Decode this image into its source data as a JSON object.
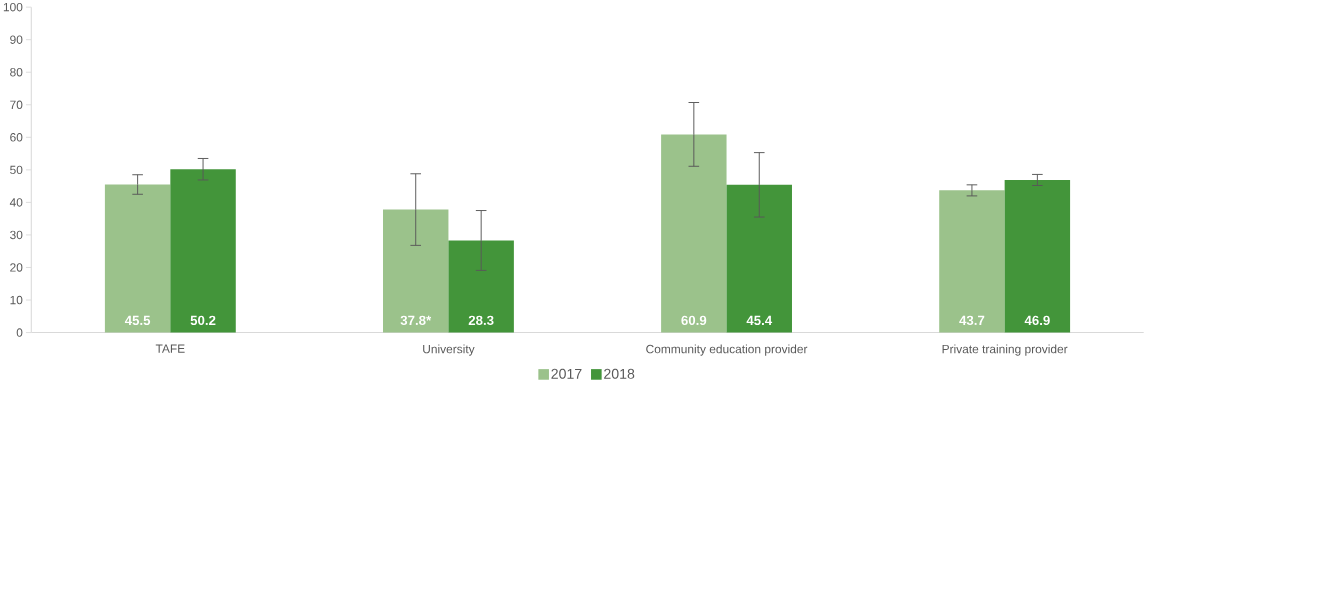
{
  "chart_data": {
    "type": "bar",
    "categories": [
      "TAFE",
      "University",
      "Community education provider",
      "Private training provider"
    ],
    "series": [
      {
        "name": "2017",
        "color": "#9bc28b",
        "values": [
          45.5,
          37.8,
          60.9,
          43.7
        ],
        "errors": [
          3.0,
          11.0,
          9.8,
          1.7
        ],
        "value_labels": [
          "45.5",
          "37.8*",
          "60.9",
          "43.7"
        ]
      },
      {
        "name": "2018",
        "color": "#43953a",
        "values": [
          50.2,
          28.3,
          45.4,
          46.9
        ],
        "errors": [
          3.3,
          9.2,
          9.9,
          1.7
        ],
        "value_labels": [
          "50.2",
          "28.3",
          "45.4",
          "46.9"
        ]
      }
    ],
    "ylim": [
      0,
      100
    ],
    "yticks": [
      0,
      10,
      20,
      30,
      40,
      50,
      60,
      70,
      80,
      90,
      100
    ],
    "grid": false,
    "legend": "bottom"
  }
}
